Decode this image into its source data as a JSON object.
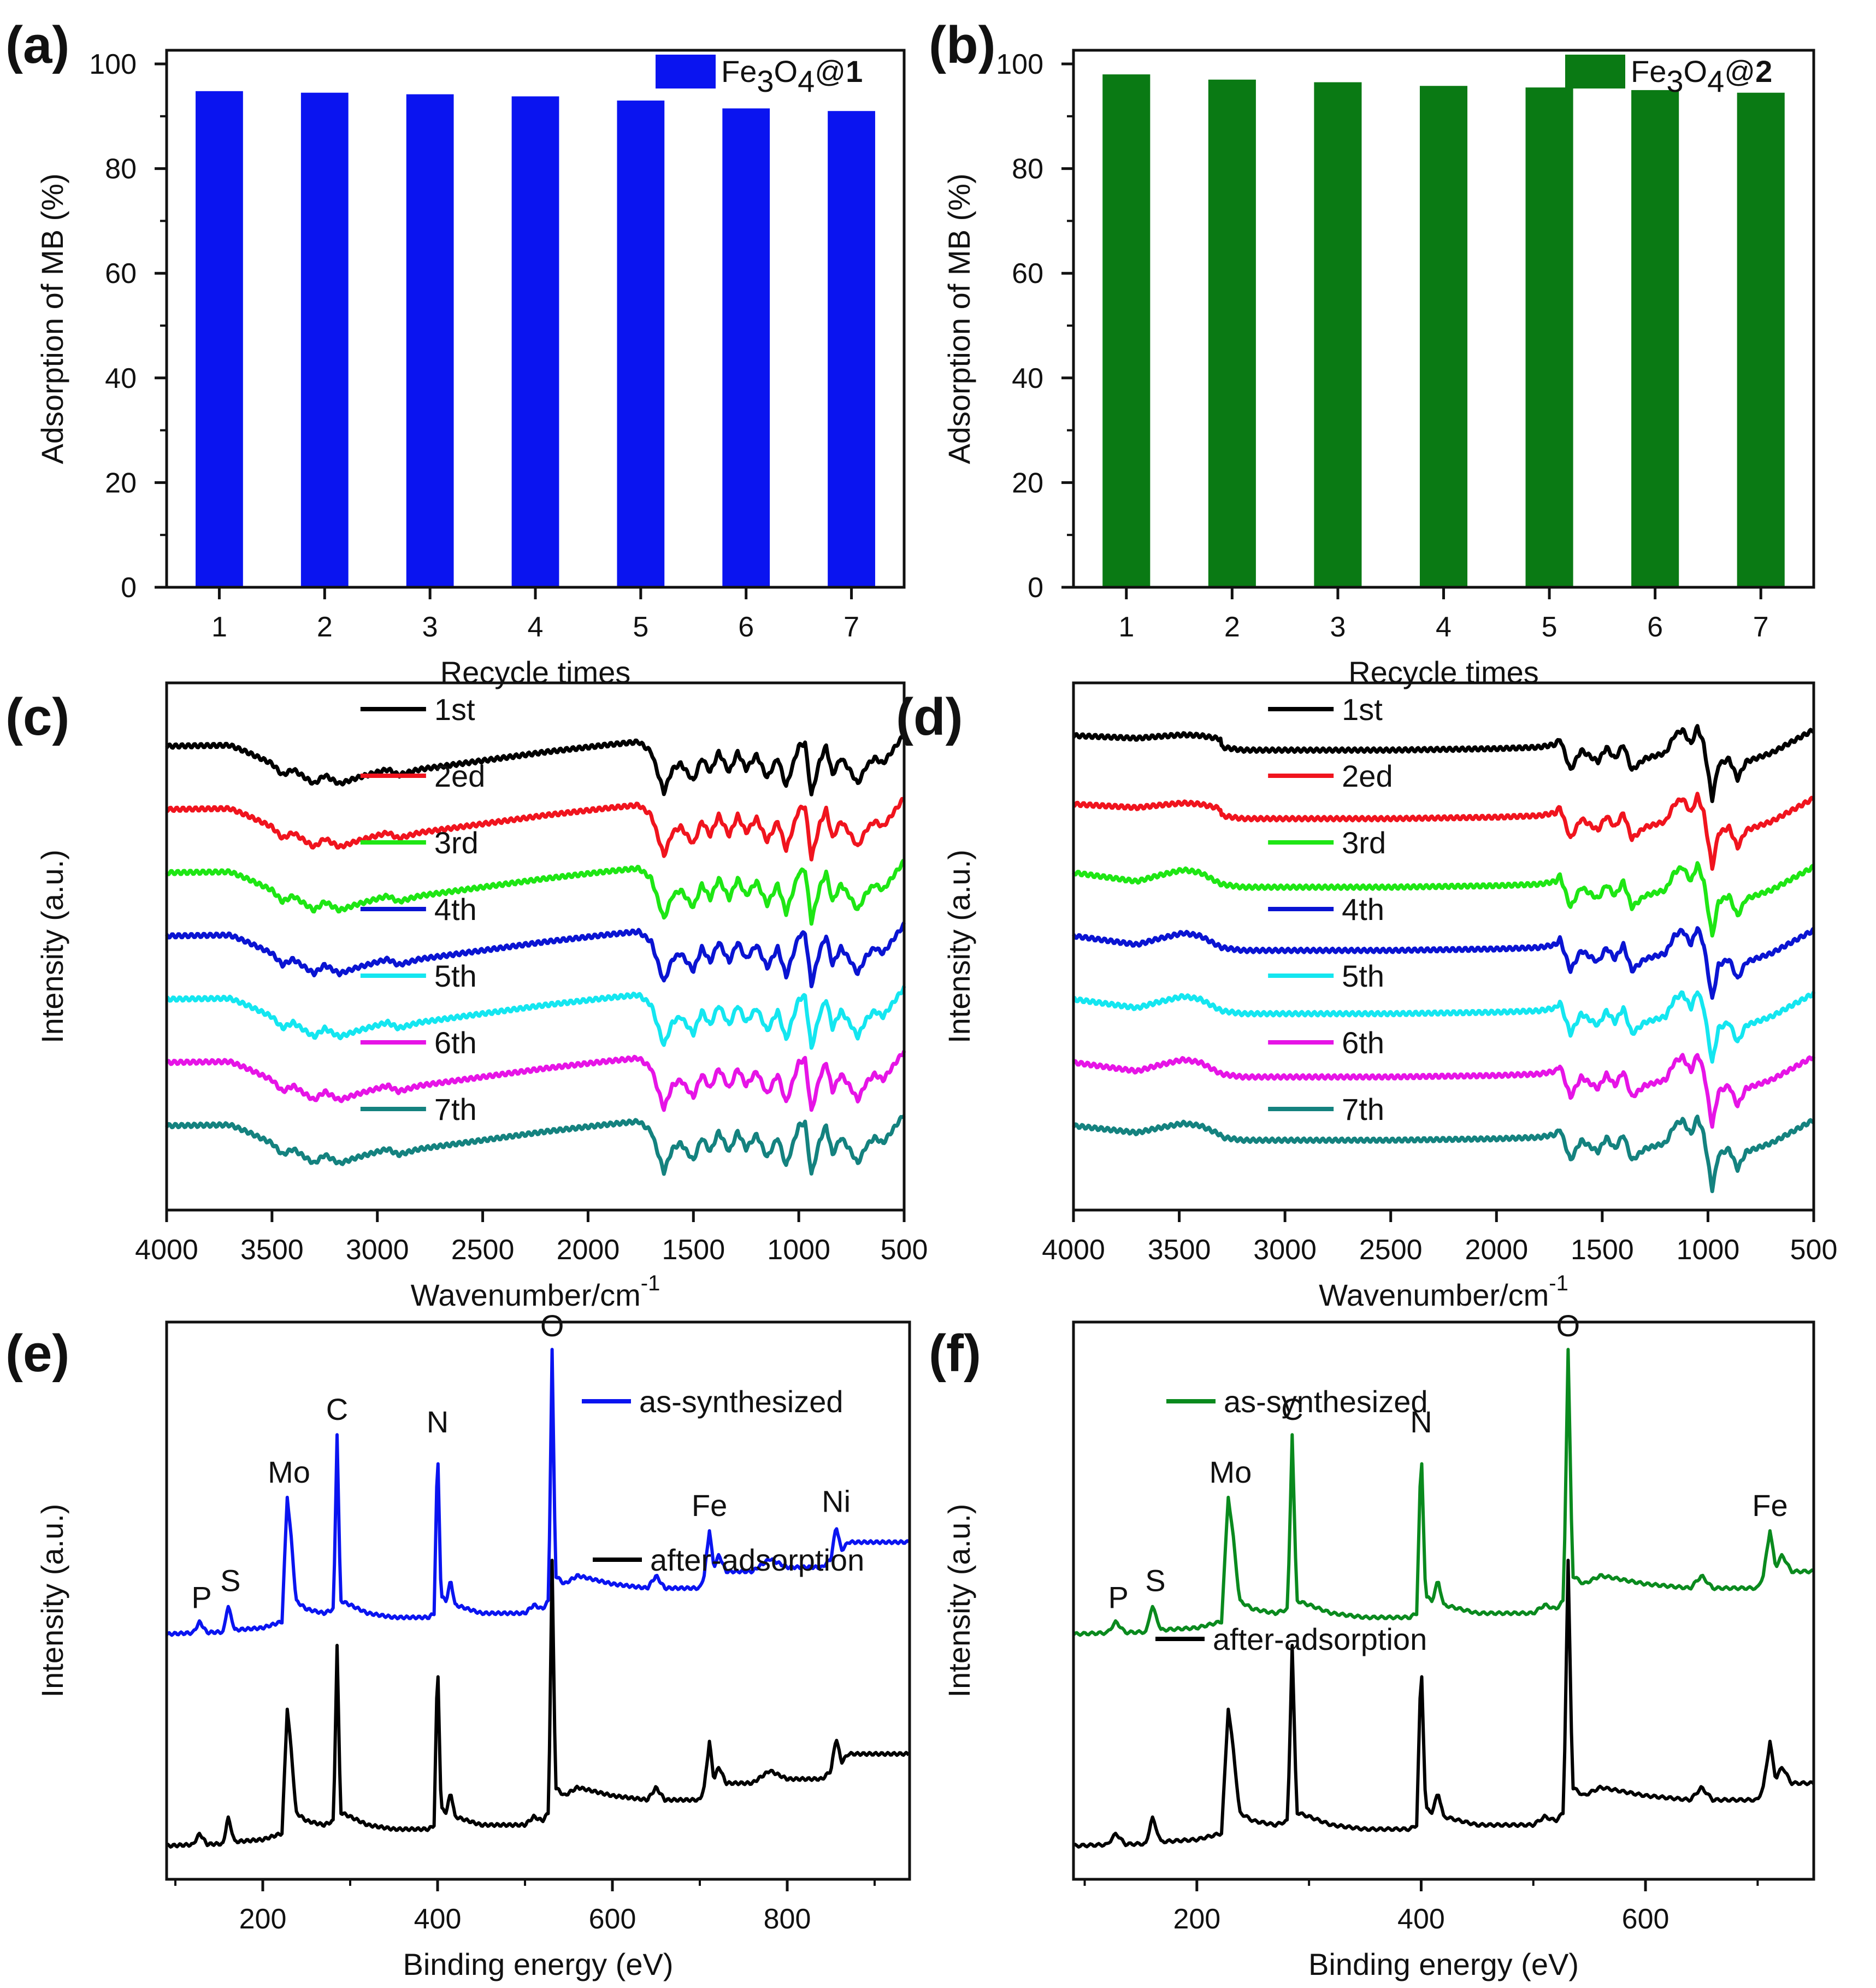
{
  "panels": {
    "a": {
      "label": "(a)"
    },
    "b": {
      "label": "(b)"
    },
    "c": {
      "label": "(c)"
    },
    "d": {
      "label": "(d)"
    },
    "e": {
      "label": "(e)"
    },
    "f": {
      "label": "(f)"
    }
  },
  "chart_data": [
    {
      "id": "a",
      "type": "bar",
      "title": "",
      "xlabel": "Recycle times",
      "ylabel": "Adsorption of MB (%)",
      "categories": [
        "1",
        "2",
        "3",
        "4",
        "5",
        "6",
        "7"
      ],
      "values": [
        94.8,
        94.5,
        94.2,
        93.8,
        93.0,
        91.5,
        91.0
      ],
      "ylim": [
        0,
        100
      ],
      "yticks": [
        0,
        20,
        40,
        60,
        80,
        100
      ],
      "legend": {
        "name_prefix": "Fe",
        "sub1": "3",
        "mid": "O",
        "sub2": "4",
        "at": "@",
        "bold": "1",
        "placement": "top-right"
      },
      "color": "#0a14f0"
    },
    {
      "id": "b",
      "type": "bar",
      "title": "",
      "xlabel": "Recycle times",
      "ylabel": "Adsorption of MB (%)",
      "categories": [
        "1",
        "2",
        "3",
        "4",
        "5",
        "6",
        "7"
      ],
      "values": [
        98.0,
        97.0,
        96.5,
        95.8,
        95.5,
        95.0,
        94.5
      ],
      "ylim": [
        0,
        100
      ],
      "yticks": [
        0,
        20,
        40,
        60,
        80,
        100
      ],
      "legend": {
        "name_prefix": "Fe",
        "sub1": "3",
        "mid": "O",
        "sub2": "4",
        "at": "@",
        "bold": "2",
        "placement": "top-right"
      },
      "color": "#0a7a14"
    },
    {
      "id": "c",
      "type": "line",
      "title": "",
      "xlabel": "Wavenumber/cm",
      "xlabel_sup": "-1",
      "ylabel": "Intensity (a.u.)",
      "xlim": [
        4000,
        500
      ],
      "xticks": [
        4000,
        3500,
        3000,
        2500,
        2000,
        1500,
        1000,
        500
      ],
      "ylim": [
        0,
        100
      ],
      "series": [
        {
          "name": "1st",
          "color": "#000000",
          "offset": 88
        },
        {
          "name": "2ed",
          "color": "#f0141e",
          "offset": 76
        },
        {
          "name": "3rd",
          "color": "#1ee614",
          "offset": 64
        },
        {
          "name": "4th",
          "color": "#0a14d2",
          "offset": 52
        },
        {
          "name": "5th",
          "color": "#14e6f0",
          "offset": 40
        },
        {
          "name": "6th",
          "color": "#e614e6",
          "offset": 28
        },
        {
          "name": "7th",
          "color": "#14827f",
          "offset": 16
        }
      ],
      "baseline_profile": [
        [
          4000,
          0
        ],
        [
          3700,
          0.3
        ],
        [
          3620,
          -2
        ],
        [
          3500,
          -6
        ],
        [
          3450,
          -10
        ],
        [
          3400,
          -8
        ],
        [
          3300,
          -13
        ],
        [
          3250,
          -10
        ],
        [
          3180,
          -13
        ],
        [
          3100,
          -11
        ],
        [
          2950,
          -8
        ],
        [
          2900,
          -10
        ],
        [
          2800,
          -8
        ],
        [
          2500,
          -5
        ],
        [
          2200,
          -2
        ],
        [
          1900,
          0.5
        ],
        [
          1760,
          1.5
        ],
        [
          1700,
          -2
        ],
        [
          1640,
          -16
        ],
        [
          1600,
          -8
        ],
        [
          1560,
          -6
        ],
        [
          1500,
          -12
        ],
        [
          1460,
          -4
        ],
        [
          1420,
          -9
        ],
        [
          1380,
          -2
        ],
        [
          1330,
          -9
        ],
        [
          1290,
          -2
        ],
        [
          1250,
          -8
        ],
        [
          1200,
          -3
        ],
        [
          1150,
          -11
        ],
        [
          1100,
          -4
        ],
        [
          1060,
          -14
        ],
        [
          1000,
          0
        ],
        [
          970,
          1
        ],
        [
          940,
          -17
        ],
        [
          900,
          -5
        ],
        [
          870,
          0
        ],
        [
          840,
          -10
        ],
        [
          800,
          -4
        ],
        [
          760,
          -8
        ],
        [
          720,
          -13
        ],
        [
          680,
          -7
        ],
        [
          640,
          -4
        ],
        [
          600,
          -6
        ],
        [
          500,
          4
        ]
      ],
      "legend_placement": "top-right"
    },
    {
      "id": "d",
      "type": "line",
      "title": "",
      "xlabel": "Wavenumber/cm",
      "xlabel_sup": "-1",
      "ylabel": "Intensity (a.u.)",
      "xlim": [
        4000,
        500
      ],
      "xticks": [
        4000,
        3500,
        3000,
        2500,
        2000,
        1500,
        1000,
        500
      ],
      "ylim": [
        0,
        100
      ],
      "series": [
        {
          "name": "1st",
          "color": "#000000",
          "offset": 90,
          "hump": 0.3
        },
        {
          "name": "2ed",
          "color": "#f0141e",
          "offset": 77,
          "hump": 0.4
        },
        {
          "name": "3rd",
          "color": "#1ee614",
          "offset": 64,
          "hump": 1.0
        },
        {
          "name": "4th",
          "color": "#0a14d2",
          "offset": 52,
          "hump": 1.0
        },
        {
          "name": "5th",
          "color": "#14e6f0",
          "offset": 40,
          "hump": 1.0
        },
        {
          "name": "6th",
          "color": "#e614e6",
          "offset": 28,
          "hump": 1.0
        },
        {
          "name": "7th",
          "color": "#14827f",
          "offset": 16,
          "hump": 0.8
        }
      ],
      "baseline_profile": [
        [
          4000,
          0
        ],
        [
          3800,
          -2
        ],
        [
          3700,
          -3
        ],
        [
          3600,
          -1
        ],
        [
          3480,
          1
        ],
        [
          3400,
          0
        ],
        [
          3300,
          -4
        ],
        [
          3200,
          -5
        ],
        [
          3000,
          -5
        ],
        [
          2500,
          -5
        ],
        [
          2000,
          -4.5
        ],
        [
          1800,
          -4
        ],
        [
          1720,
          -3
        ],
        [
          1700,
          -1
        ],
        [
          1650,
          -12
        ],
        [
          1600,
          -5
        ],
        [
          1520,
          -9
        ],
        [
          1480,
          -4
        ],
        [
          1440,
          -8
        ],
        [
          1400,
          -3
        ],
        [
          1360,
          -12
        ],
        [
          1300,
          -8
        ],
        [
          1250,
          -7
        ],
        [
          1200,
          -6
        ],
        [
          1160,
          0
        ],
        [
          1120,
          2
        ],
        [
          1080,
          -3
        ],
        [
          1050,
          3
        ],
        [
          1020,
          -3
        ],
        [
          980,
          -22
        ],
        [
          950,
          -10
        ],
        [
          900,
          -8
        ],
        [
          860,
          -15
        ],
        [
          820,
          -9
        ],
        [
          780,
          -8
        ],
        [
          700,
          -6
        ],
        [
          600,
          -2
        ],
        [
          500,
          2
        ]
      ],
      "legend_placement": "top-right"
    },
    {
      "id": "e",
      "type": "line",
      "title": "",
      "xlabel": "Binding energy (eV)",
      "ylabel": "Intensity (a.u.)",
      "xlim": [
        90,
        940
      ],
      "xticks": [
        200,
        400,
        600,
        800
      ],
      "ylim": [
        0,
        100
      ],
      "series": [
        {
          "name": "as-synthesized",
          "color": "#0a14f0",
          "offset": 44,
          "include_fe": true
        },
        {
          "name": "after-adsorption",
          "color": "#000000",
          "offset": 6,
          "include_fe": true
        }
      ],
      "peaks": [
        {
          "label": "P",
          "x": 130
        },
        {
          "label": "S",
          "x": 163
        },
        {
          "label": "Mo",
          "x": 230
        },
        {
          "label": "C",
          "x": 285
        },
        {
          "label": "N",
          "x": 400
        },
        {
          "label": "O",
          "x": 531
        },
        {
          "label": "Fe",
          "x": 711
        },
        {
          "label": "Ni",
          "x": 856
        }
      ],
      "legend_placement": "top-right"
    },
    {
      "id": "f",
      "type": "line",
      "title": "",
      "xlabel": "Binding energy (eV)",
      "ylabel": "Intensity (a.u.)",
      "xlim": [
        90,
        750
      ],
      "xticks": [
        200,
        400,
        600
      ],
      "ylim": [
        0,
        100
      ],
      "series": [
        {
          "name": "as-synthesized",
          "color": "#0a8a1e",
          "offset": 44
        },
        {
          "name": "after-adsorption",
          "color": "#000000",
          "offset": 6
        }
      ],
      "peaks": [
        {
          "label": "P",
          "x": 130
        },
        {
          "label": "S",
          "x": 163
        },
        {
          "label": "Mo",
          "x": 230
        },
        {
          "label": "C",
          "x": 285
        },
        {
          "label": "N",
          "x": 400
        },
        {
          "label": "O",
          "x": 531
        },
        {
          "label": "Fe",
          "x": 711
        }
      ],
      "legend_placement": "top-left"
    }
  ]
}
